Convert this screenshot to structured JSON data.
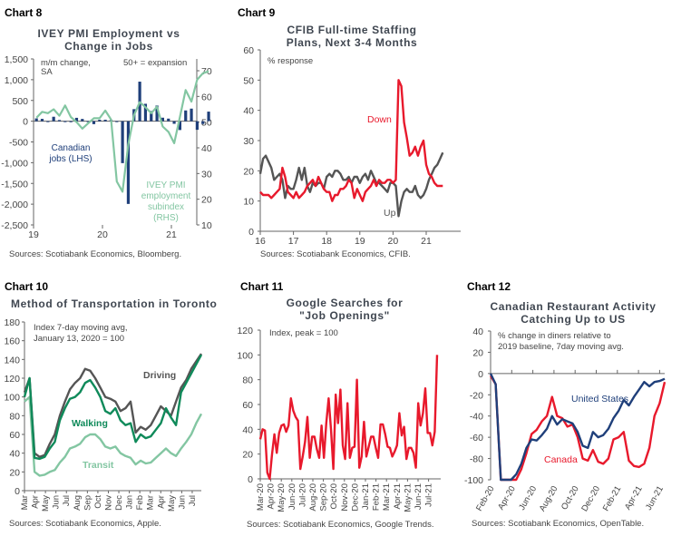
{
  "colors": {
    "red": "#e8192c",
    "dark_gray": "#555555",
    "navy": "#1f3f7a",
    "light_green": "#83c6a2",
    "dark_green": "#0f8a5a"
  },
  "chart_data": [
    {
      "id": "chart8",
      "label": "Chart 8",
      "type": "bar+line",
      "title": [
        "IVEY PMI Employment vs",
        "Change in Jobs"
      ],
      "notes": [
        "m/m change,",
        "SA",
        "50+ = expansion"
      ],
      "series_labels": {
        "jobs": [
          "Canadian",
          "jobs (LHS)"
        ],
        "pmi": [
          "IVEY PMI",
          "employment",
          "subindex",
          "(RHS)"
        ]
      },
      "x_ticks": [
        "19",
        "20",
        "21"
      ],
      "x_start": "2019-01",
      "frequency": "monthly",
      "ylim_left": [
        -2500,
        1500
      ],
      "yticks_left": [
        "1,500",
        "1,000",
        "500",
        "0",
        "-500",
        "-1,000",
        "-1,500",
        "-2,000",
        "-2,500"
      ],
      "yticks_left_values": [
        1500,
        1000,
        500,
        0,
        -500,
        -1000,
        -1500,
        -2000,
        -2500
      ],
      "ylim_right": [
        10,
        70
      ],
      "yticks_right": [
        70,
        60,
        50,
        40,
        30,
        20,
        10
      ],
      "series": [
        {
          "name": "Canadian jobs (LHS)",
          "type": "bar",
          "color": "#1f3f7a",
          "values": [
            67,
            56,
            -7,
            107,
            28,
            -2,
            -24,
            81,
            54,
            -2,
            -71,
            35,
            35,
            30,
            -1,
            -1011,
            -1994,
            290,
            953,
            419,
            246,
            378,
            84,
            62,
            -63,
            -213,
            259,
            303,
            -207,
            -68,
            231
          ]
        },
        {
          "name": "IVEY PMI employment subindex (RHS)",
          "type": "line",
          "color": "#83c6a2",
          "values": [
            51.7,
            54,
            53.5,
            55,
            52.5,
            56.5,
            52,
            50,
            47.5,
            49.5,
            51.5,
            51.5,
            54.5,
            51,
            26.9,
            22.9,
            41.2,
            52.7,
            57.8,
            55.8,
            53.5,
            56,
            48.3,
            46.2,
            41.8,
            52,
            62.5,
            58,
            66.5,
            69,
            69.8
          ]
        }
      ],
      "source": "Sources: Scotiabank Economics, Bloomberg."
    },
    {
      "id": "chart9",
      "label": "Chart 9",
      "type": "line",
      "title": [
        "CFIB Full-time Staffing",
        "Plans, Next 3-4 Months"
      ],
      "notes": [
        "% response"
      ],
      "x_ticks": [
        "16",
        "17",
        "18",
        "19",
        "20",
        "21"
      ],
      "x_start": "2016-01",
      "frequency": "monthly",
      "ylim": [
        0,
        60
      ],
      "yticks": [
        60,
        50,
        40,
        30,
        20,
        10,
        0
      ],
      "series": [
        {
          "name": "Down",
          "color": "#e8192c",
          "values": [
            13,
            12,
            12,
            12,
            11,
            12,
            13,
            14,
            21,
            18,
            13,
            12,
            11,
            13,
            11,
            12,
            13,
            15,
            16,
            17,
            15,
            18,
            16,
            14,
            13,
            13,
            10,
            12,
            12,
            14,
            14,
            15,
            17,
            16,
            11,
            14,
            12,
            10,
            13,
            14,
            15,
            17,
            15,
            17,
            16,
            16,
            17,
            17,
            16,
            17,
            50,
            48,
            36,
            31,
            25,
            26,
            28,
            25,
            28,
            30,
            22,
            19,
            18,
            16,
            15,
            15,
            15
          ]
        },
        {
          "name": "Up",
          "color": "#555555",
          "values": [
            19,
            24,
            25,
            23,
            21,
            17,
            18,
            19,
            17,
            11,
            15,
            14,
            14,
            17,
            21,
            17,
            21,
            15,
            13,
            16,
            15,
            16,
            16,
            14,
            18,
            19,
            18,
            20,
            20,
            19,
            17,
            17,
            18,
            16,
            18,
            18,
            16,
            18,
            19,
            17,
            20,
            18,
            16,
            16,
            15,
            14,
            13,
            16,
            16,
            15,
            5,
            10,
            13,
            14,
            13,
            13,
            15,
            12,
            11,
            12,
            14,
            17,
            19,
            21,
            22,
            24,
            26
          ]
        }
      ],
      "source": "Sources: Scotiabank Economics, CFIB."
    },
    {
      "id": "chart10",
      "label": "Chart 10",
      "type": "line",
      "title": [
        "Method of Transportation in Toronto"
      ],
      "notes": [
        "Index 7-day moving avg,",
        "January 13, 2020 = 100"
      ],
      "x_ticks": [
        "Mar",
        "Apr",
        "May",
        "Jun",
        "Jul",
        "Aug",
        "Sep",
        "Oct",
        "Nov",
        "Dec",
        "Jan",
        "Feb",
        "Mar",
        "Apr",
        "May",
        "Jun",
        "Jul"
      ],
      "x_range": [
        "2020-03",
        "2021-07"
      ],
      "frequency": "semi-monthly",
      "ylim": [
        0,
        180
      ],
      "yticks": [
        180,
        160,
        140,
        120,
        100,
        80,
        60,
        40,
        20,
        0
      ],
      "series": [
        {
          "name": "Driving",
          "color": "#555555",
          "values": [
            105,
            120,
            40,
            36,
            38,
            50,
            60,
            80,
            95,
            108,
            115,
            120,
            130,
            128,
            120,
            110,
            100,
            98,
            95,
            85,
            88,
            95,
            62,
            68,
            65,
            70,
            80,
            90,
            85,
            80,
            95,
            110,
            118,
            130,
            138,
            146
          ]
        },
        {
          "name": "Walking",
          "color": "#0f8a5a",
          "values": [
            100,
            120,
            35,
            34,
            36,
            45,
            52,
            75,
            88,
            98,
            100,
            105,
            115,
            118,
            110,
            100,
            85,
            82,
            88,
            75,
            70,
            72,
            52,
            60,
            56,
            58,
            65,
            72,
            88,
            78,
            70,
            105,
            115,
            125,
            135,
            145
          ]
        },
        {
          "name": "Transit",
          "color": "#83c6a2",
          "values": [
            95,
            100,
            20,
            16,
            17,
            20,
            22,
            30,
            36,
            45,
            47,
            50,
            57,
            60,
            60,
            55,
            47,
            45,
            47,
            40,
            37,
            35,
            28,
            32,
            29,
            30,
            35,
            40,
            45,
            40,
            37,
            45,
            52,
            60,
            72,
            82
          ]
        }
      ],
      "source": "Sources: Scotiabank Economics, Apple."
    },
    {
      "id": "chart11",
      "label": "Chart 11",
      "type": "line",
      "title": [
        "Google Searches for",
        "\"Job Openings\""
      ],
      "notes": [
        "Index, peak = 100"
      ],
      "x_ticks": [
        "Mar-20",
        "Apr-20",
        "May-20",
        "Jun-20",
        "Jul-20",
        "Aug-20",
        "Sep-20",
        "Oct-20",
        "Nov-20",
        "Dec-20",
        "Jan-21",
        "Feb-21",
        "Mar-21",
        "Apr-21",
        "May-21",
        "Jun-21",
        "Jul-21"
      ],
      "frequency": "weekly",
      "ylim": [
        0,
        120
      ],
      "yticks": [
        120,
        100,
        80,
        60,
        40,
        20,
        0
      ],
      "series": [
        {
          "name": "",
          "color": "#e8192c",
          "values": [
            32,
            40,
            39,
            5,
            0,
            20,
            36,
            21,
            37,
            43,
            44,
            38,
            43,
            65,
            55,
            50,
            47,
            8,
            18,
            30,
            50,
            17,
            34,
            34,
            24,
            17,
            43,
            17,
            45,
            65,
            40,
            8,
            68,
            45,
            72,
            27,
            16,
            61,
            17,
            25,
            26,
            80,
            9,
            18,
            46,
            18,
            26,
            34,
            34,
            25,
            17,
            44,
            44,
            36,
            26,
            25,
            18,
            22,
            27,
            53,
            35,
            42,
            16,
            25,
            25,
            21,
            9,
            61,
            43,
            53,
            73,
            37,
            37,
            27,
            38,
            100
          ]
        }
      ],
      "source": "Sources: Scotiabank Economics, Google Trends."
    },
    {
      "id": "chart12",
      "label": "Chart 12",
      "type": "line",
      "title": [
        "Canadian Restaurant Activity",
        "Catching Up to US"
      ],
      "notes": [
        "% change in diners relative to",
        "2019 baseline, 7day moving avg."
      ],
      "x_ticks": [
        "Feb-20",
        "Apr-20",
        "Jun-20",
        "Aug-20",
        "Oct-20",
        "Dec-20",
        "Feb-21",
        "Apr-21",
        "Jun-21"
      ],
      "frequency": "semi-monthly",
      "ylim": [
        -100,
        40
      ],
      "yticks": [
        40,
        20,
        0,
        -20,
        -40,
        -60,
        -80,
        -100
      ],
      "series": [
        {
          "name": "United States",
          "color": "#1f3f7a",
          "values": [
            0,
            -10,
            -100,
            -100,
            -100,
            -95,
            -85,
            -70,
            -62,
            -63,
            -58,
            -52,
            -40,
            -48,
            -43,
            -45,
            -47,
            -55,
            -68,
            -70,
            -55,
            -60,
            -58,
            -52,
            -42,
            -35,
            -25,
            -30,
            -22,
            -15,
            -8,
            -12,
            -8,
            -7,
            -5
          ]
        },
        {
          "name": "Canada",
          "color": "#e8192c",
          "values": [
            -2,
            -10,
            -100,
            -100,
            -100,
            -100,
            -90,
            -75,
            -57,
            -53,
            -45,
            -40,
            -22,
            -40,
            -42,
            -50,
            -48,
            -60,
            -80,
            -82,
            -72,
            -83,
            -85,
            -80,
            -62,
            -60,
            -55,
            -82,
            -87,
            -88,
            -85,
            -70,
            -40,
            -28,
            -8
          ]
        }
      ],
      "source": "Sources: Scotiabank Economics, OpenTable."
    }
  ]
}
